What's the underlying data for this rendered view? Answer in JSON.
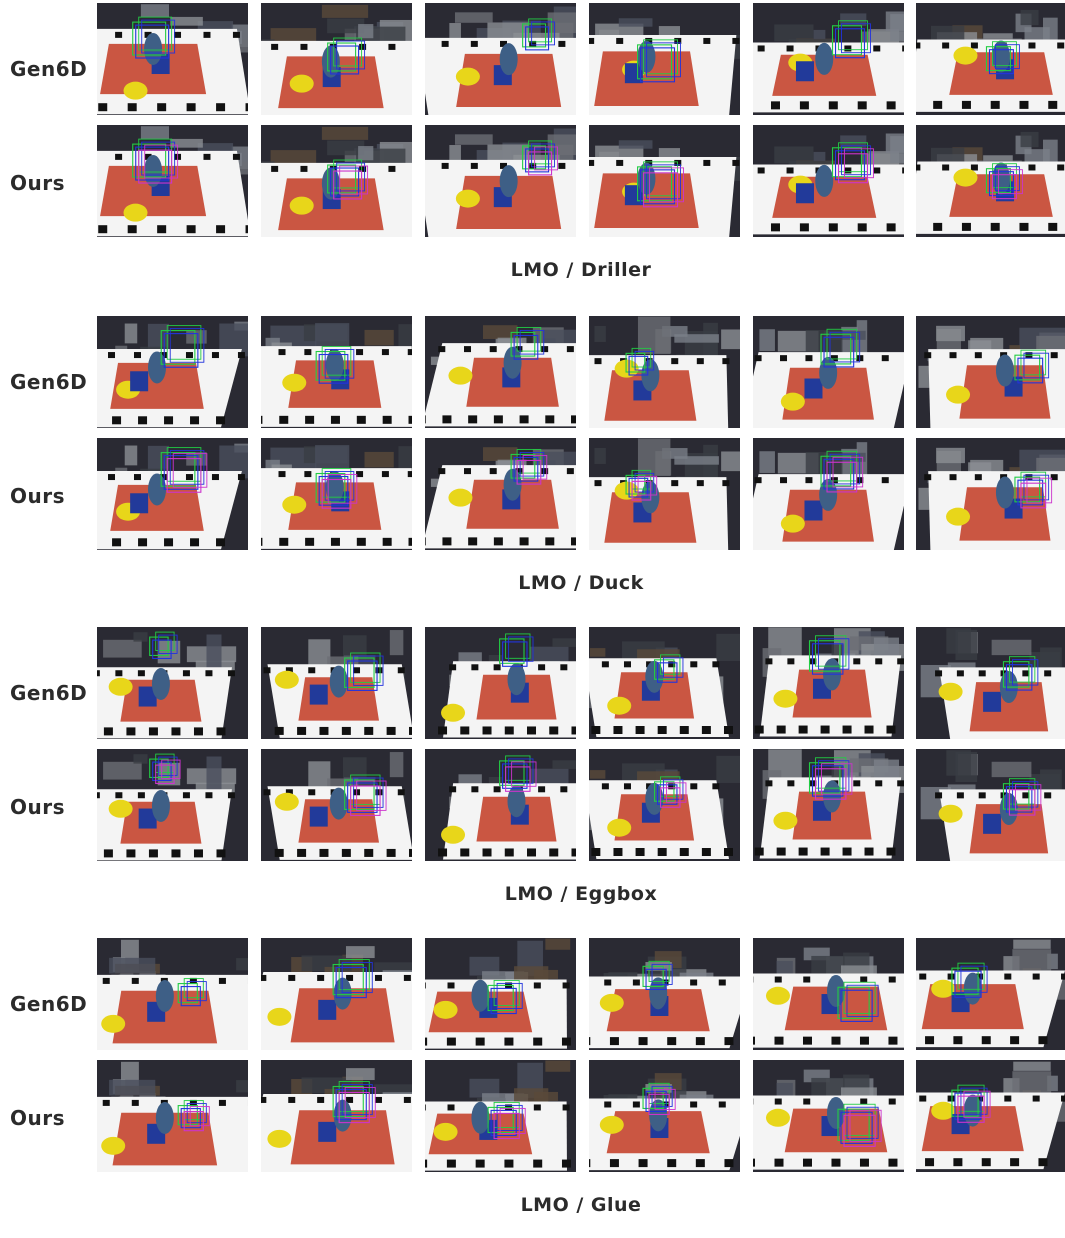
{
  "row_labels": {
    "baseline": "Gen6D",
    "ours": "Ours"
  },
  "sections": [
    {
      "caption": "LMO / Driller"
    },
    {
      "caption": "LMO / Duck"
    },
    {
      "caption": "LMO / Eggbox"
    },
    {
      "caption": "LMO / Glue"
    }
  ],
  "colors": {
    "ground_truth_box": "#22cc44",
    "baseline_box": "#2233dd",
    "ours_box": "#cc33cc",
    "marker_white": "#f4f4f4",
    "marker_black": "#111111",
    "scene_dark": "#2a2a33",
    "accent_yellow": "#e8d61a",
    "accent_red": "#c23a22",
    "accent_blue": "#3e5f86"
  },
  "images_per_row": 6
}
